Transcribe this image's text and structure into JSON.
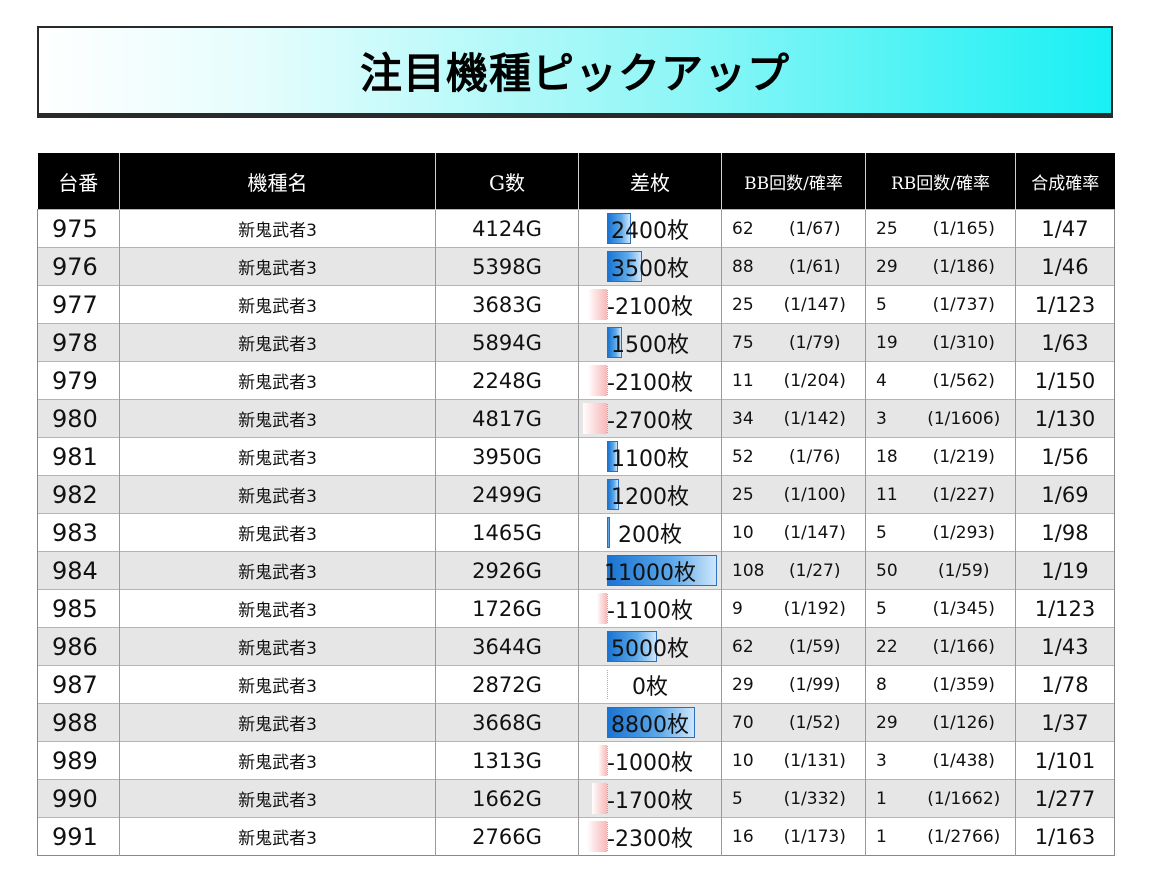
{
  "page": {
    "title": "注目機種ピックアップ"
  },
  "table": {
    "headers": [
      "台番",
      "機種名",
      "G数",
      "差枚",
      "BB回数/確率",
      "RB回数/確率",
      "合成確率"
    ],
    "rows": [
      {
        "no": "975",
        "name": "新鬼武者3",
        "games": "4124G",
        "diff": "2400枚",
        "diff_value": 2400,
        "bb": "62",
        "bb_prob": "(1/67)",
        "rb": "25",
        "rb_prob": "(1/165)",
        "total": "1/47"
      },
      {
        "no": "976",
        "name": "新鬼武者3",
        "games": "5398G",
        "diff": "3500枚",
        "diff_value": 3500,
        "bb": "88",
        "bb_prob": "(1/61)",
        "rb": "29",
        "rb_prob": "(1/186)",
        "total": "1/46"
      },
      {
        "no": "977",
        "name": "新鬼武者3",
        "games": "3683G",
        "diff": "-2100枚",
        "diff_value": -2100,
        "bb": "25",
        "bb_prob": "(1/147)",
        "rb": "5",
        "rb_prob": "(1/737)",
        "total": "1/123"
      },
      {
        "no": "978",
        "name": "新鬼武者3",
        "games": "5894G",
        "diff": "1500枚",
        "diff_value": 1500,
        "bb": "75",
        "bb_prob": "(1/79)",
        "rb": "19",
        "rb_prob": "(1/310)",
        "total": "1/63"
      },
      {
        "no": "979",
        "name": "新鬼武者3",
        "games": "2248G",
        "diff": "-2100枚",
        "diff_value": -2100,
        "bb": "11",
        "bb_prob": "(1/204)",
        "rb": "4",
        "rb_prob": "(1/562)",
        "total": "1/150"
      },
      {
        "no": "980",
        "name": "新鬼武者3",
        "games": "4817G",
        "diff": "-2700枚",
        "diff_value": -2700,
        "bb": "34",
        "bb_prob": "(1/142)",
        "rb": "3",
        "rb_prob": "(1/1606)",
        "total": "1/130"
      },
      {
        "no": "981",
        "name": "新鬼武者3",
        "games": "3950G",
        "diff": "1100枚",
        "diff_value": 1100,
        "bb": "52",
        "bb_prob": "(1/76)",
        "rb": "18",
        "rb_prob": "(1/219)",
        "total": "1/56"
      },
      {
        "no": "982",
        "name": "新鬼武者3",
        "games": "2499G",
        "diff": "1200枚",
        "diff_value": 1200,
        "bb": "25",
        "bb_prob": "(1/100)",
        "rb": "11",
        "rb_prob": "(1/227)",
        "total": "1/69"
      },
      {
        "no": "983",
        "name": "新鬼武者3",
        "games": "1465G",
        "diff": "200枚",
        "diff_value": 200,
        "bb": "10",
        "bb_prob": "(1/147)",
        "rb": "5",
        "rb_prob": "(1/293)",
        "total": "1/98"
      },
      {
        "no": "984",
        "name": "新鬼武者3",
        "games": "2926G",
        "diff": "11000枚",
        "diff_value": 11000,
        "bb": "108",
        "bb_prob": "(1/27)",
        "rb": "50",
        "rb_prob": "(1/59)",
        "total": "1/19"
      },
      {
        "no": "985",
        "name": "新鬼武者3",
        "games": "1726G",
        "diff": "-1100枚",
        "diff_value": -1100,
        "bb": "9",
        "bb_prob": "(1/192)",
        "rb": "5",
        "rb_prob": "(1/345)",
        "total": "1/123"
      },
      {
        "no": "986",
        "name": "新鬼武者3",
        "games": "3644G",
        "diff": "5000枚",
        "diff_value": 5000,
        "bb": "62",
        "bb_prob": "(1/59)",
        "rb": "22",
        "rb_prob": "(1/166)",
        "total": "1/43"
      },
      {
        "no": "987",
        "name": "新鬼武者3",
        "games": "2872G",
        "diff": "0枚",
        "diff_value": 0,
        "bb": "29",
        "bb_prob": "(1/99)",
        "rb": "8",
        "rb_prob": "(1/359)",
        "total": "1/78"
      },
      {
        "no": "988",
        "name": "新鬼武者3",
        "games": "3668G",
        "diff": "8800枚",
        "diff_value": 8800,
        "bb": "70",
        "bb_prob": "(1/52)",
        "rb": "29",
        "rb_prob": "(1/126)",
        "total": "1/37"
      },
      {
        "no": "989",
        "name": "新鬼武者3",
        "games": "1313G",
        "diff": "-1000枚",
        "diff_value": -1000,
        "bb": "10",
        "bb_prob": "(1/131)",
        "rb": "3",
        "rb_prob": "(1/438)",
        "total": "1/101"
      },
      {
        "no": "990",
        "name": "新鬼武者3",
        "games": "1662G",
        "diff": "-1700枚",
        "diff_value": -1700,
        "bb": "5",
        "bb_prob": "(1/332)",
        "rb": "1",
        "rb_prob": "(1/1662)",
        "total": "1/277"
      },
      {
        "no": "991",
        "name": "新鬼武者3",
        "games": "2766G",
        "diff": "-2300枚",
        "diff_value": -2300,
        "bb": "16",
        "bb_prob": "(1/173)",
        "rb": "1",
        "rb_prob": "(1/2766)",
        "total": "1/163"
      }
    ]
  },
  "colors": {
    "title_gradient_end": "#19f0f4",
    "header_bg": "#000000",
    "positive_bar": "#1a74d2",
    "negative_bar": "#f8b9b9",
    "alt_row": "#e6e6e6"
  }
}
